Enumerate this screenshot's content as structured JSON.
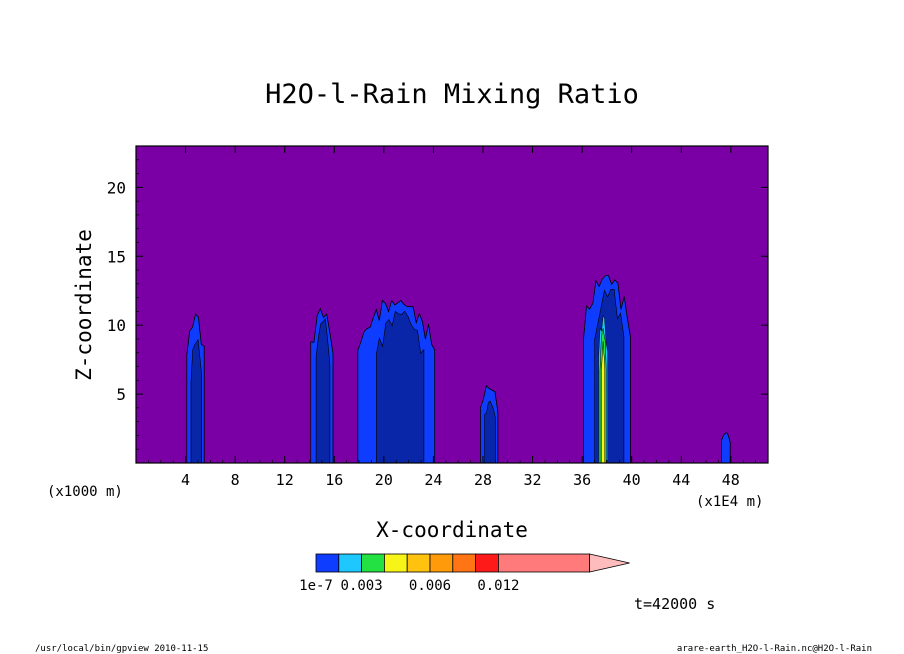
{
  "chart_data": {
    "type": "heatmap",
    "title": "H2O-l-Rain Mixing Ratio",
    "xlabel": "X-coordinate",
    "ylabel": "Z-coordinate",
    "x_unit_left": "(x1000 m)",
    "x_unit_right": "(x1E4 m)",
    "xlim": [
      0,
      51
    ],
    "ylim": [
      0,
      23
    ],
    "x_ticks": [
      4,
      8,
      12,
      16,
      20,
      24,
      28,
      32,
      36,
      40,
      44,
      48
    ],
    "y_ticks": [
      5,
      10,
      15,
      20
    ],
    "background_color": "#7a00a6",
    "contour_levels": [
      {
        "level": 1,
        "color": "#0f3dff"
      },
      {
        "level": 2,
        "color": "#0a26a8"
      },
      {
        "level": 3,
        "color": "#1ec8ff"
      },
      {
        "level": 4,
        "color": "#23e043"
      },
      {
        "level": 5,
        "color": "#f7f518"
      }
    ],
    "cells": [
      {
        "center_x": 4.8,
        "width": 1.4,
        "top": 10.8,
        "core_top": 9.0,
        "max_level": 2
      },
      {
        "center_x": 15.0,
        "width": 1.8,
        "top": 11.2,
        "core_top": 10.5,
        "max_level": 2
      },
      {
        "center_x": 21.0,
        "width": 6.2,
        "top": 11.8,
        "core_top": 11.0,
        "max_level": 2
      },
      {
        "center_x": 28.5,
        "width": 1.4,
        "top": 5.6,
        "core_top": 4.5,
        "max_level": 2
      },
      {
        "center_x": 38.0,
        "width": 3.8,
        "top": 13.6,
        "core_top": 12.6,
        "max_level": 5
      },
      {
        "center_x": 47.6,
        "width": 0.7,
        "top": 2.2,
        "core_top": 1.5,
        "max_level": 1
      }
    ],
    "colorbar": {
      "colors": [
        "#0f3dff",
        "#1ec8ff",
        "#23e043",
        "#f7f518",
        "#ffc20e",
        "#ff9b0a",
        "#ff7415",
        "#ff1a1a",
        "#ff7a7a",
        "#ffbcbc"
      ],
      "tick_labels": [
        "1e-7",
        "0.003",
        "0.006",
        "0.012"
      ],
      "tick_positions": [
        0,
        0.003,
        0.006,
        0.012
      ]
    },
    "time_label": "t=42000 s",
    "footer_left": "/usr/local/bin/gpview  2010-11-15",
    "footer_right": "arare-earth_H2O-l-Rain.nc@H2O-l-Rain"
  }
}
